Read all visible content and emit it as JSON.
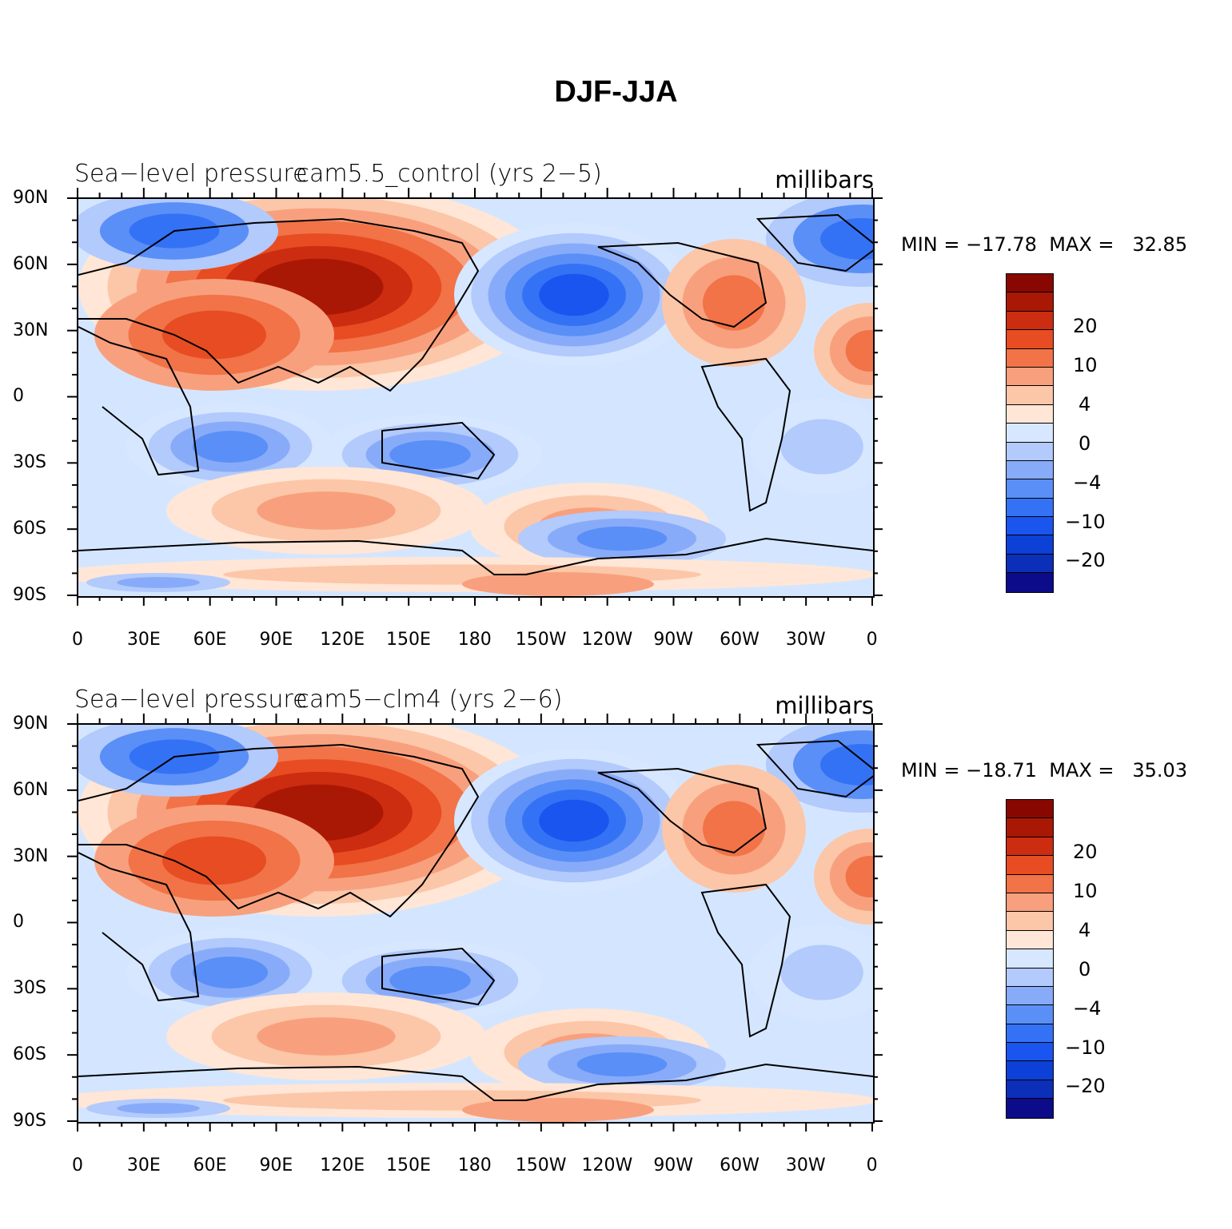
{
  "title": "DJF-JJA",
  "colors": [
    "#0c0b8a",
    "#0b2fb8",
    "#0c40d6",
    "#1a55ef",
    "#3472f5",
    "#5a8ff7",
    "#88abf9",
    "#b2cafc",
    "#d6e7ff",
    "#ffe6d6",
    "#fcc6a8",
    "#f8a07d",
    "#f17347",
    "#e84c22",
    "#cc2c10",
    "#a91805",
    "#880801"
  ],
  "colorbar": {
    "labels": [
      "20",
      "10",
      "4",
      "0",
      "−4",
      "−10",
      "−20"
    ]
  },
  "axes": {
    "y_labels": [
      "90N",
      "60N",
      "30N",
      "0",
      "30S",
      "60S",
      "90S"
    ],
    "x_labels": [
      "0",
      "30E",
      "60E",
      "90E",
      "120E",
      "150E",
      "180",
      "150W",
      "120W",
      "90W",
      "60W",
      "30W",
      "0"
    ]
  },
  "panels": [
    {
      "variable": "Sea−level pressure",
      "case": "cam5.5_control (yrs 2−5)",
      "units": "millibars",
      "min_label": "MIN = −17.78",
      "max_label": "MAX =   32.85"
    },
    {
      "variable": "Sea−level pressure",
      "case": "cam5−clm4 (yrs 2−6)",
      "units": "millibars",
      "min_label": "MIN = −18.71",
      "max_label": "MAX =   35.03"
    }
  ]
}
